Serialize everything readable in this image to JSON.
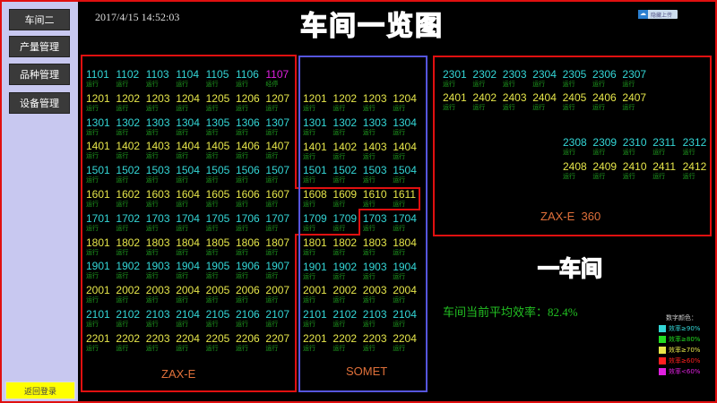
{
  "sidebar": {
    "items": [
      {
        "label": "车间二"
      },
      {
        "label": "产量管理"
      },
      {
        "label": "品种管理"
      },
      {
        "label": "设备管理"
      }
    ],
    "logout": "返回登录"
  },
  "header": {
    "datetime": "2017/4/15 14:52:03",
    "title": "车间一览图",
    "upload_button": "隐藏上传",
    "upload_icon": "cloud-icon"
  },
  "colors": {
    "c90": "#33d6d6",
    "c80": "#22dd22",
    "c70": "#e6e64a",
    "c60": "#ff2020",
    "clow": "#e020e0",
    "status": "#1fa01f",
    "group_label": "#e0703a",
    "zaxe_border": "#e01010",
    "somet_border": "#5555dd"
  },
  "groups": [
    {
      "label": "ZAX-E",
      "rows": [
        {
          "c": "c90",
          "ids": [
            "1101",
            "1102",
            "1103",
            "1104",
            "1105",
            "1106",
            [
              "1107",
              "clow",
              "经停"
            ]
          ]
        },
        {
          "c": "c70",
          "ids": [
            "1201",
            "1202",
            "1203",
            "1204",
            "1205",
            "1206",
            "1207"
          ]
        },
        {
          "c": "c90",
          "ids": [
            "1301",
            "1302",
            "1303",
            "1304",
            "1305",
            "1306",
            "1307"
          ]
        },
        {
          "c": "c70",
          "ids": [
            "1401",
            "1402",
            "1403",
            "1404",
            "1405",
            "1406",
            "1407"
          ]
        },
        {
          "c": "c90",
          "ids": [
            "1501",
            "1502",
            "1503",
            "1504",
            "1505",
            "1506",
            "1507"
          ]
        },
        {
          "c": "c70",
          "ids": [
            "1601",
            "1602",
            "1603",
            "1604",
            "1605",
            "1606",
            "1607"
          ]
        },
        {
          "c": "c90",
          "ids": [
            "1701",
            "1702",
            "1703",
            "1704",
            "1705",
            "1706",
            "1707"
          ]
        },
        {
          "c": "c70",
          "ids": [
            "1801",
            "1802",
            "1803",
            "1804",
            "1805",
            "1806",
            "1807"
          ]
        },
        {
          "c": "c90",
          "ids": [
            "1901",
            "1902",
            "1903",
            "1904",
            "1905",
            "1906",
            "1907"
          ]
        },
        {
          "c": "c70",
          "ids": [
            "2001",
            "2002",
            "2003",
            "2004",
            "2005",
            "2006",
            "2007"
          ]
        },
        {
          "c": "c90",
          "ids": [
            "2101",
            "2102",
            "2103",
            "2104",
            "2105",
            "2106",
            "2107"
          ]
        },
        {
          "c": "c70",
          "ids": [
            "2201",
            "2202",
            "2203",
            "2204",
            "2205",
            "2206",
            "2207"
          ]
        }
      ]
    },
    {
      "label": "SOMET",
      "rows": [
        {
          "c": "c70",
          "ids": [
            "1201",
            "1202",
            "1203",
            "1204"
          ]
        },
        {
          "c": "c90",
          "ids": [
            "1301",
            "1302",
            "1303",
            "1304"
          ]
        },
        {
          "c": "c70",
          "ids": [
            "1401",
            "1402",
            "1403",
            "1404"
          ]
        },
        {
          "c": "c90",
          "ids": [
            "1501",
            "1502",
            "1503",
            "1504"
          ]
        },
        {
          "c": "c70",
          "ids": [
            "1608",
            "1609",
            "1610",
            "1611"
          ]
        },
        {
          "c": "c90",
          "ids": [
            "1709",
            "1709",
            "1703",
            "1704"
          ]
        },
        {
          "c": "c70",
          "ids": [
            "1801",
            "1802",
            "1803",
            "1804"
          ]
        },
        {
          "c": "c90",
          "ids": [
            "1901",
            "1902",
            "1903",
            "1904"
          ]
        },
        {
          "c": "c70",
          "ids": [
            "2001",
            "2002",
            "2003",
            "2004"
          ]
        },
        {
          "c": "c90",
          "ids": [
            "2101",
            "2102",
            "2103",
            "2104"
          ]
        },
        {
          "c": "c70",
          "ids": [
            "2201",
            "2202",
            "2203",
            "2204"
          ]
        }
      ]
    },
    {
      "label": "ZAX-E  360",
      "rows": [
        {
          "c": "c90",
          "ids": [
            "2301",
            "2302",
            "2303",
            "2304",
            "2305",
            "2306",
            "2307"
          ]
        },
        {
          "c": "c70",
          "ids": [
            "2401",
            "2402",
            "2403",
            "2404",
            "2405",
            "2406",
            "2407"
          ]
        },
        {
          "c": "c90",
          "ids": [
            "2308",
            "2309",
            "2310",
            "2311",
            "2312"
          ]
        },
        {
          "c": "c70",
          "ids": [
            "2408",
            "2409",
            "2410",
            "2411",
            "2412"
          ]
        }
      ]
    }
  ],
  "default_status": "运行",
  "workshop_title": "一车间",
  "efficiency": "车间当前平均效率：82.4%",
  "legend": {
    "title": "数字颜色：",
    "items": [
      {
        "label": "效率≥90%",
        "c": "c90"
      },
      {
        "label": "效率≥80%",
        "c": "c80"
      },
      {
        "label": "效率≥70%",
        "c": "c70"
      },
      {
        "label": "效率≥60%",
        "c": "c60"
      },
      {
        "label": "效率<60%",
        "c": "clow"
      }
    ]
  }
}
